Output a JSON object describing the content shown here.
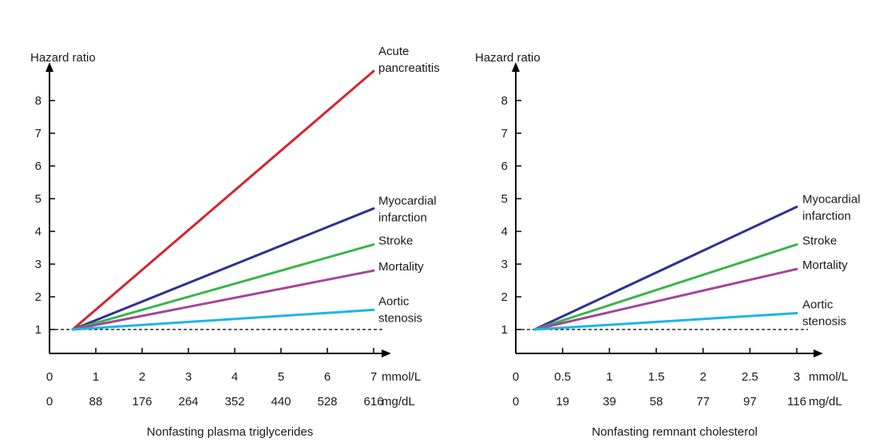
{
  "chart_data": [
    {
      "type": "line",
      "ylabel": "Hazard ratio",
      "xlabel": "Nonfasting plasma triglycerides",
      "ylim": [
        1,
        8
      ],
      "yticks": [
        "1",
        "2",
        "3",
        "4",
        "5",
        "6",
        "7",
        "8"
      ],
      "xlim": [
        0,
        7
      ],
      "x_units": [
        "mmol/L",
        "mg/dL"
      ],
      "xticks_mmol": [
        "0",
        "1",
        "2",
        "3",
        "4",
        "5",
        "6",
        "7"
      ],
      "xticks_mgdl": [
        "0",
        "88",
        "176",
        "264",
        "352",
        "440",
        "528",
        "616"
      ],
      "reference_line": {
        "y": 1,
        "style": "dashed"
      },
      "series": [
        {
          "name": "Acute pancreatitis",
          "label_lines": [
            "Acute",
            "pancreatitis"
          ],
          "color": "#d22630",
          "points": [
            [
              0.5,
              1.0
            ],
            [
              7,
              8.9
            ]
          ]
        },
        {
          "name": "Myocardial infarction",
          "label_lines": [
            "Myocardial",
            "infarction"
          ],
          "color": "#2e3192",
          "points": [
            [
              0.5,
              1.0
            ],
            [
              7,
              4.7
            ]
          ]
        },
        {
          "name": "Stroke",
          "label_lines": [
            "Stroke"
          ],
          "color": "#39b54a",
          "points": [
            [
              0.5,
              1.0
            ],
            [
              7,
              3.6
            ]
          ]
        },
        {
          "name": "Mortality",
          "label_lines": [
            "Mortality"
          ],
          "color": "#a3479a",
          "points": [
            [
              0.5,
              1.0
            ],
            [
              7,
              2.8
            ]
          ]
        },
        {
          "name": "Aortic stenosis",
          "label_lines": [
            "Aortic",
            "stenosis"
          ],
          "color": "#1cb5ea",
          "points": [
            [
              0.5,
              1.0
            ],
            [
              7,
              1.6
            ]
          ]
        }
      ]
    },
    {
      "type": "line",
      "ylabel": "Hazard ratio",
      "xlabel": "Nonfasting remnant cholesterol",
      "ylim": [
        1,
        8
      ],
      "yticks": [
        "1",
        "2",
        "3",
        "4",
        "5",
        "6",
        "7",
        "8"
      ],
      "xlim": [
        0,
        3
      ],
      "x_units": [
        "mmol/L",
        "mg/dL"
      ],
      "xticks_mmol": [
        "0",
        "0.5",
        "1",
        "1.5",
        "2",
        "2.5",
        "3"
      ],
      "xticks_mgdl": [
        "0",
        "19",
        "39",
        "58",
        "77",
        "97",
        "116"
      ],
      "reference_line": {
        "y": 1,
        "style": "dashed"
      },
      "series": [
        {
          "name": "Myocardial infarction",
          "label_lines": [
            "Myocardial",
            "infarction"
          ],
          "color": "#2e3192",
          "points": [
            [
              0.2,
              1.0
            ],
            [
              3,
              4.75
            ]
          ]
        },
        {
          "name": "Stroke",
          "label_lines": [
            "Stroke"
          ],
          "color": "#39b54a",
          "points": [
            [
              0.2,
              1.0
            ],
            [
              3,
              3.6
            ]
          ]
        },
        {
          "name": "Mortality",
          "label_lines": [
            "Mortality"
          ],
          "color": "#a3479a",
          "points": [
            [
              0.2,
              1.0
            ],
            [
              3,
              2.85
            ]
          ]
        },
        {
          "name": "Aortic stenosis",
          "label_lines": [
            "Aortic",
            "stenosis"
          ],
          "color": "#1cb5ea",
          "points": [
            [
              0.2,
              1.0
            ],
            [
              3,
              1.5
            ]
          ]
        }
      ]
    }
  ]
}
